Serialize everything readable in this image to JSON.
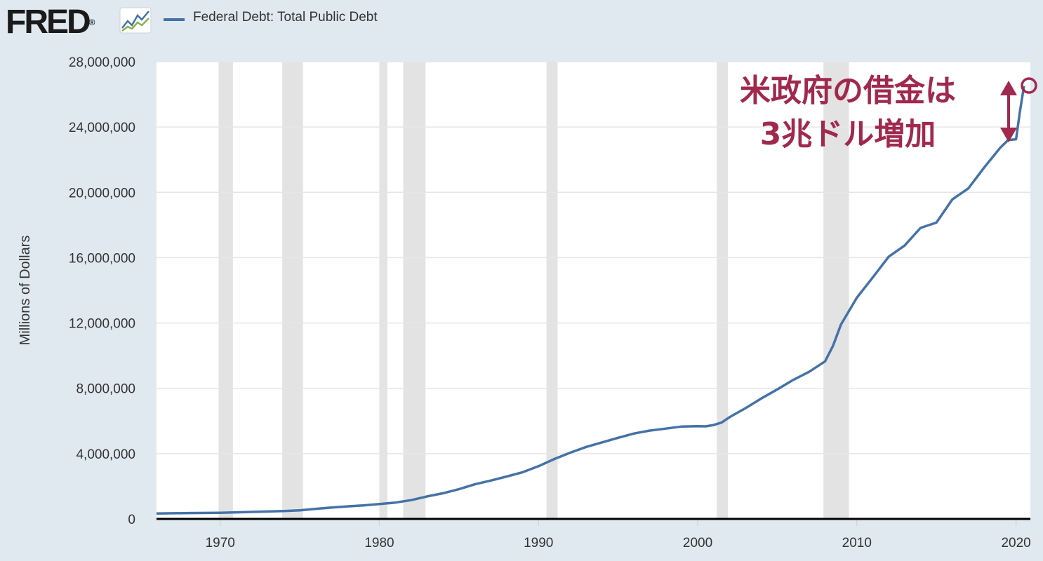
{
  "header": {
    "logo_text": "FRED",
    "registered_mark": "®",
    "legend_label": "Federal Debt: Total Public Debt"
  },
  "annotation": {
    "line1": "米政府の借金は",
    "line2": "3兆ドル増加",
    "color": "#a0294e"
  },
  "chart_data": {
    "type": "line",
    "title": "",
    "xlabel": "",
    "ylabel": "Millions of Dollars",
    "xlim": [
      1966,
      2020.9
    ],
    "ylim": [
      0,
      28000000
    ],
    "yticks": [
      0,
      4000000,
      8000000,
      12000000,
      16000000,
      20000000,
      24000000,
      28000000
    ],
    "ytick_labels": [
      "0",
      "4,000,000",
      "8,000,000",
      "12,000,000",
      "16,000,000",
      "20,000,000",
      "24,000,000",
      "28,000,000"
    ],
    "xticks": [
      1970,
      1980,
      1990,
      2000,
      2010,
      2020
    ],
    "xtick_labels": [
      "1970",
      "1980",
      "1990",
      "2000",
      "2010",
      "2020"
    ],
    "grid": true,
    "recessions": [
      [
        1969.9,
        1970.8
      ],
      [
        1973.9,
        1975.2
      ],
      [
        1980.0,
        1980.5
      ],
      [
        1981.5,
        1982.9
      ],
      [
        1990.5,
        1991.2
      ],
      [
        2001.2,
        2001.9
      ],
      [
        2007.9,
        2009.5
      ]
    ],
    "series": [
      {
        "name": "Federal Debt: Total Public Debt",
        "color": "#4572a7",
        "x": [
          1966,
          1968,
          1970,
          1972,
          1974,
          1975,
          1976,
          1977,
          1978,
          1979,
          1980,
          1981,
          1982,
          1983,
          1984,
          1985,
          1986,
          1987,
          1988,
          1989,
          1990,
          1991,
          1992,
          1993,
          1994,
          1995,
          1996,
          1997,
          1998,
          1999,
          2000,
          2000.5,
          2001,
          2001.5,
          2002,
          2003,
          2004,
          2005,
          2006,
          2007,
          2008,
          2008.5,
          2009,
          2010,
          2011,
          2012,
          2013,
          2014,
          2015,
          2016,
          2017,
          2018,
          2019,
          2019.5,
          2020,
          2020.25,
          2020.5
        ],
        "values": [
          330000,
          360000,
          380000,
          430000,
          480000,
          530000,
          620000,
          700000,
          770000,
          830000,
          910000,
          1000000,
          1150000,
          1380000,
          1570000,
          1820000,
          2120000,
          2350000,
          2600000,
          2860000,
          3230000,
          3670000,
          4060000,
          4410000,
          4690000,
          4970000,
          5230000,
          5410000,
          5530000,
          5660000,
          5680000,
          5670000,
          5750000,
          5900000,
          6230000,
          6780000,
          7380000,
          7930000,
          8510000,
          9010000,
          9650000,
          10600000,
          11900000,
          13550000,
          14790000,
          16060000,
          16740000,
          17820000,
          18150000,
          19570000,
          20240000,
          21520000,
          22720000,
          23200000,
          23250000,
          25000000,
          26500000
        ]
      }
    ]
  }
}
